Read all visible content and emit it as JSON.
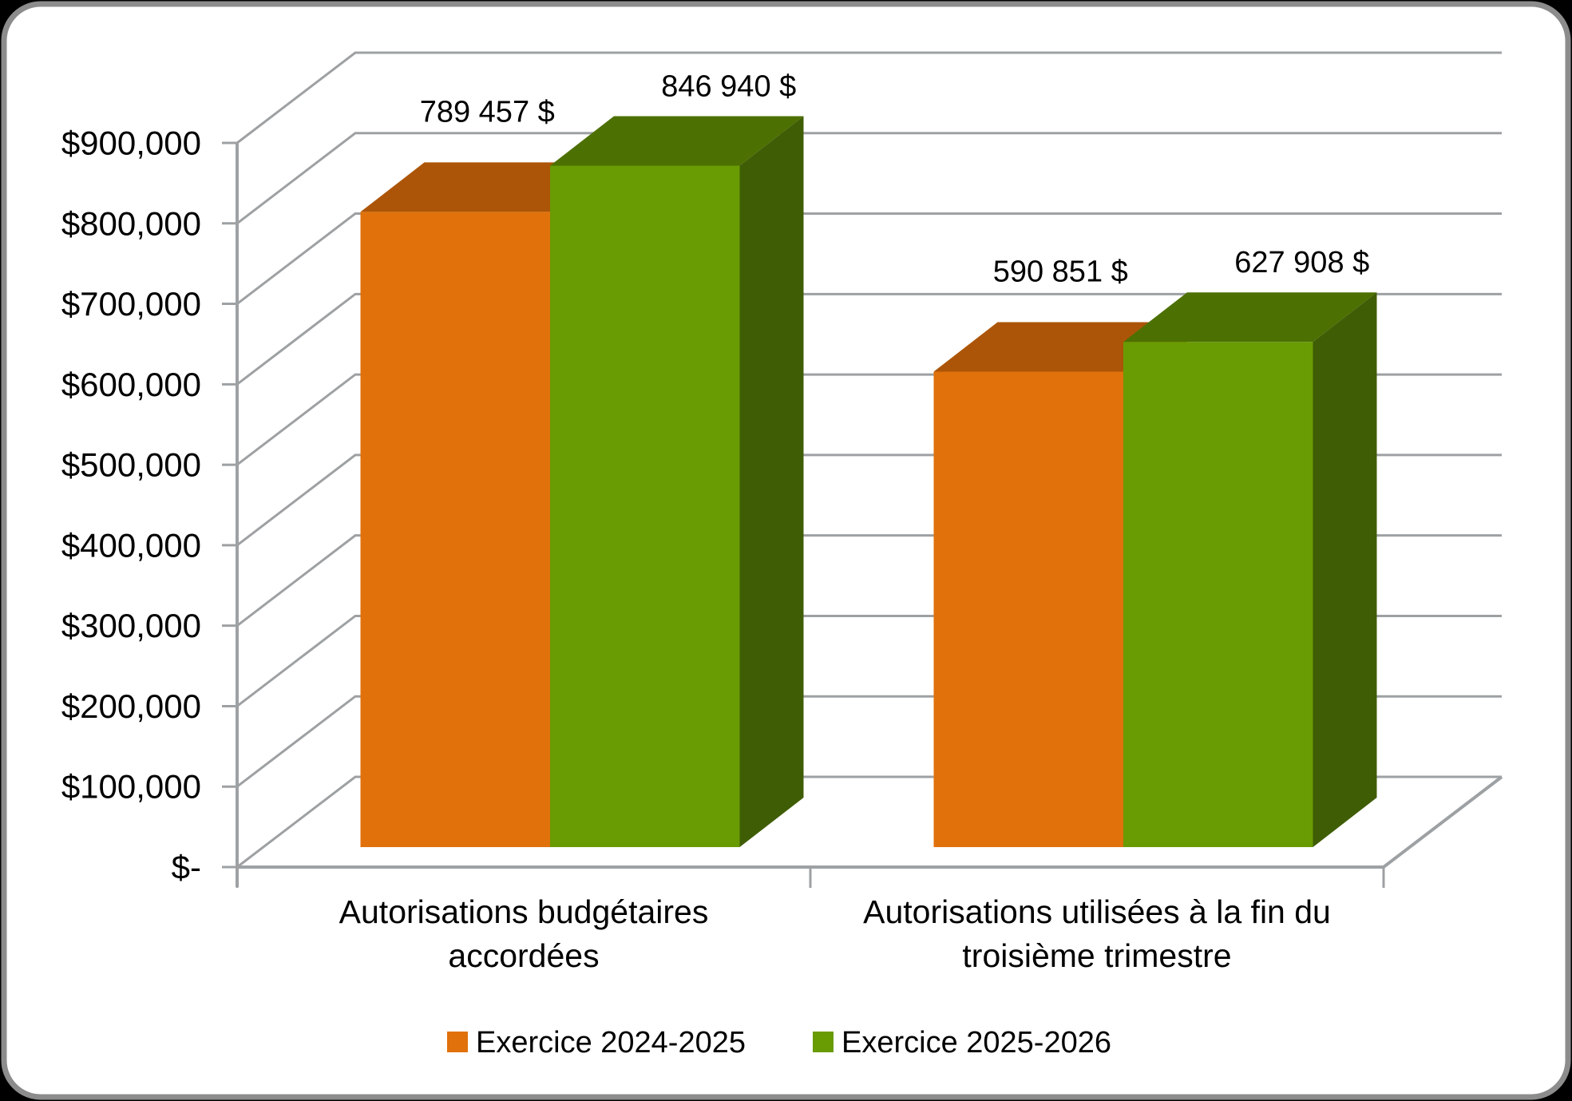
{
  "frame": {
    "background_outside": "#000000",
    "fill": "#FFFFFF",
    "border_color": "#8C8C8C"
  },
  "chart_data": {
    "type": "bar",
    "style": "3d-clustered-column",
    "title": "",
    "categories": [
      "Autorisations budgétaires accordées",
      "Autorisations utilisées à la fin du troisième trimestre"
    ],
    "category_label_lines": [
      [
        "Autorisations budgétaires",
        "accordées"
      ],
      [
        "Autorisations utilisées à la fin du",
        "troisième trimestre"
      ]
    ],
    "series": [
      {
        "name": "Exercice 2024-2025",
        "values": [
          789457,
          590851
        ],
        "data_labels": [
          "789 457 $",
          "590 851 $"
        ],
        "color_front": "#E0710B",
        "color_top": "#AC5508",
        "color_side": "#9F5007"
      },
      {
        "name": "Exercice 2025-2026",
        "values": [
          846940,
          627908
        ],
        "data_labels": [
          "846 940 $",
          "627 908 $"
        ],
        "color_front": "#699B03",
        "color_top": "#4D7003",
        "color_side": "#3F5D05"
      }
    ],
    "value_axis": {
      "min": 0,
      "max": 900000,
      "step": 100000,
      "tick_labels": [
        "$-",
        "$100,000",
        "$200,000",
        "$300,000",
        "$400,000",
        "$500,000",
        "$600,000",
        "$700,000",
        "$800,000",
        "$900,000"
      ]
    },
    "legend": {
      "position": "bottom",
      "entries": [
        "Exercice 2024-2025",
        "Exercice 2025-2026"
      ]
    },
    "gridlines": true,
    "text_color": "#000000",
    "line_color": "#9EA1A3"
  }
}
